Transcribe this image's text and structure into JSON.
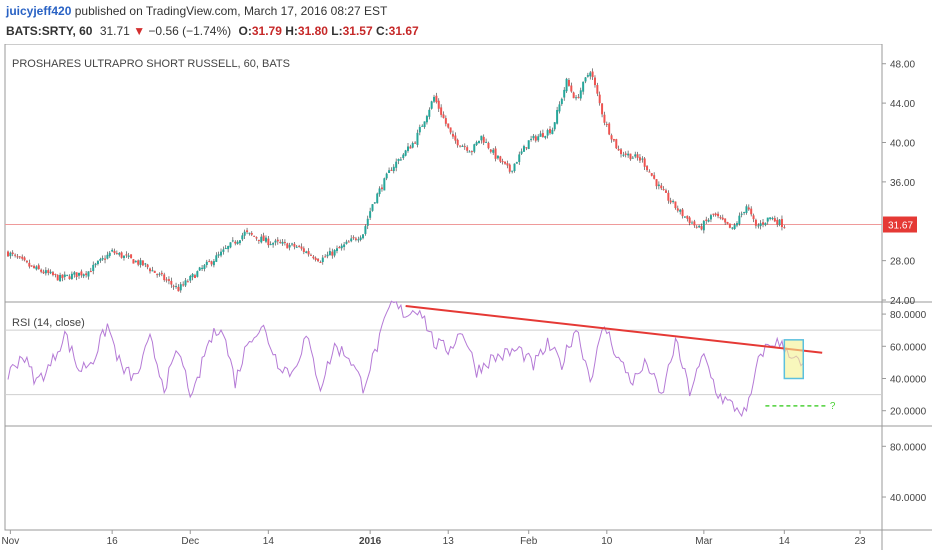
{
  "header": {
    "author": "juicyjeff420",
    "published": "published on TradingView.com, March 17, 2016 08:27 EST",
    "symbol": "BATS:SRTY, 60",
    "last": "31.71",
    "change_arrow": "▼",
    "change": "−0.56 (−1.74%)",
    "o_label": "O:",
    "o_val": "31.79",
    "h_label": "H:",
    "h_val": "31.80",
    "l_label": "L:",
    "l_val": "31.57",
    "c_label": "C:",
    "c_val": "31.67"
  },
  "colors": {
    "up": "#26a69a",
    "down": "#ef5350",
    "rsi": "#b57ad6",
    "trendline": "#e53935",
    "price_line": "#ef9a9a",
    "price_tag": "#e53935",
    "highlight_fill": "#f4f190",
    "highlight_stroke": "#5bc0de",
    "support_dash": "#4cd137"
  },
  "chart_data": [
    {
      "type": "candlestick",
      "title": "PROSHARES ULTRAPRO SHORT RUSSELL, 60, BATS",
      "y_ticks": [
        "48.00",
        "44.00",
        "40.00",
        "36.00",
        "28.00",
        "24.00"
      ],
      "y_tick_values": [
        48,
        44,
        40,
        36,
        28,
        24
      ],
      "ylim": [
        23.8,
        49.8
      ],
      "last_price_label": "31.67",
      "last_price": 31.67,
      "x_labels": [
        "Nov",
        "16",
        "Dec",
        "14",
        "2016",
        "13",
        "Feb",
        "10",
        "Mar",
        "14",
        "23"
      ],
      "x_label_positions": [
        0.5,
        22,
        38.5,
        55,
        76.5,
        93,
        110,
        126.5,
        147,
        164,
        180
      ],
      "x_range": [
        0,
        184
      ],
      "path_trading_days": [
        0,
        5,
        11,
        17,
        22,
        29,
        36,
        40,
        45,
        50,
        55,
        61,
        66,
        70,
        75,
        77,
        81,
        86,
        90,
        94,
        98,
        100,
        103,
        106,
        110,
        115,
        118,
        120,
        123,
        126,
        129,
        134,
        138,
        142,
        146,
        149,
        153,
        156,
        158,
        161,
        164
      ],
      "path_close": [
        28.8,
        27.3,
        26.2,
        26.9,
        28.9,
        27.5,
        25.1,
        26.8,
        28.7,
        30.8,
        29.9,
        29.4,
        28.1,
        29.2,
        30.8,
        33.8,
        37.4,
        40.2,
        44.6,
        40.3,
        39.2,
        40.6,
        38.6,
        37.1,
        40.1,
        41.4,
        46.2,
        44.3,
        47.4,
        42.2,
        39.1,
        38.2,
        35.1,
        32.9,
        31.2,
        32.7,
        31.1,
        33.6,
        31.4,
        32.4,
        31.6
      ]
    },
    {
      "type": "line",
      "title": "RSI (14, close)",
      "y_ticks": [
        "80.0000",
        "60.0000",
        "40.0000",
        "20.0000"
      ],
      "y_tick_values": [
        80,
        60,
        40,
        20
      ],
      "ylim": [
        10.5,
        87.5
      ],
      "bands": [
        70,
        30
      ],
      "trendline": {
        "from": [
          84,
          85
        ],
        "to": [
          172,
          56
        ]
      },
      "highlight_box": {
        "x": [
          164,
          168
        ],
        "y": [
          40,
          64
        ]
      },
      "support_level": 23,
      "support_range": [
        160,
        173
      ],
      "support_label": "?",
      "path_trading_days": [
        0,
        3,
        6,
        9,
        12,
        15,
        18,
        21,
        24,
        27,
        30,
        33,
        36,
        39,
        42,
        45,
        48,
        51,
        54,
        57,
        60,
        63,
        66,
        69,
        72,
        75,
        78,
        81,
        84,
        87,
        90,
        93,
        96,
        99,
        102,
        105,
        108,
        111,
        114,
        117,
        120,
        123,
        126,
        129,
        132,
        135,
        138,
        141,
        144,
        147,
        150,
        153,
        156,
        159,
        162,
        165,
        168
      ],
      "path_values": [
        42,
        55,
        38,
        48,
        68,
        45,
        52,
        73,
        46,
        40,
        64,
        35,
        57,
        27,
        60,
        74,
        38,
        66,
        71,
        50,
        43,
        66,
        35,
        60,
        54,
        35,
        60,
        87,
        80,
        84,
        62,
        58,
        70,
        45,
        52,
        55,
        58,
        48,
        61,
        49,
        72,
        40,
        73,
        52,
        38,
        50,
        28,
        63,
        32,
        54,
        30,
        23,
        18,
        56,
        63,
        57,
        46
      ]
    },
    {
      "type": "line",
      "title": "",
      "y_ticks": [
        "80.0000",
        "40.0000"
      ],
      "y_tick_values": [
        80,
        40
      ],
      "ylim": [
        14,
        96
      ]
    }
  ]
}
